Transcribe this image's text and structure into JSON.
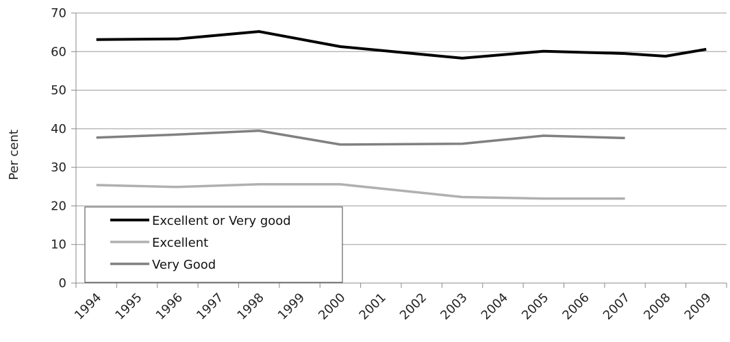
{
  "chart_data": {
    "type": "line",
    "title": "",
    "xlabel": "",
    "ylabel": "Per cent",
    "ylim": [
      0,
      70
    ],
    "yticks": [
      "0",
      "10",
      "20",
      "30",
      "40",
      "50",
      "60",
      "70"
    ],
    "x": [
      "1994",
      "1995",
      "1996",
      "1997",
      "1998",
      "1999",
      "2000",
      "2001",
      "2002",
      "2003",
      "2004",
      "2005",
      "2006",
      "2007",
      "2008",
      "2009"
    ],
    "grid": "horizontal",
    "legend": "bottom-left",
    "series": [
      {
        "name": "Excellent or Very good",
        "color": "#000000",
        "points": [
          [
            1994,
            63.1
          ],
          [
            1996,
            63.3
          ],
          [
            1998,
            65.2
          ],
          [
            2000,
            61.3
          ],
          [
            2003,
            58.3
          ],
          [
            2005,
            60.1
          ],
          [
            2007,
            59.5
          ],
          [
            2008,
            58.8
          ],
          [
            2009,
            60.6
          ]
        ]
      },
      {
        "name": "Excellent",
        "color": "#b0b0b0",
        "points": [
          [
            1994,
            25.4
          ],
          [
            1996,
            24.9
          ],
          [
            1998,
            25.6
          ],
          [
            2000,
            25.6
          ],
          [
            2003,
            22.3
          ],
          [
            2005,
            21.9
          ],
          [
            2007,
            21.9
          ]
        ]
      },
      {
        "name": "Very Good",
        "color": "#808080",
        "points": [
          [
            1994,
            37.7
          ],
          [
            1996,
            38.5
          ],
          [
            1998,
            39.5
          ],
          [
            2000,
            35.9
          ],
          [
            2003,
            36.1
          ],
          [
            2005,
            38.2
          ],
          [
            2007,
            37.6
          ]
        ]
      }
    ]
  }
}
